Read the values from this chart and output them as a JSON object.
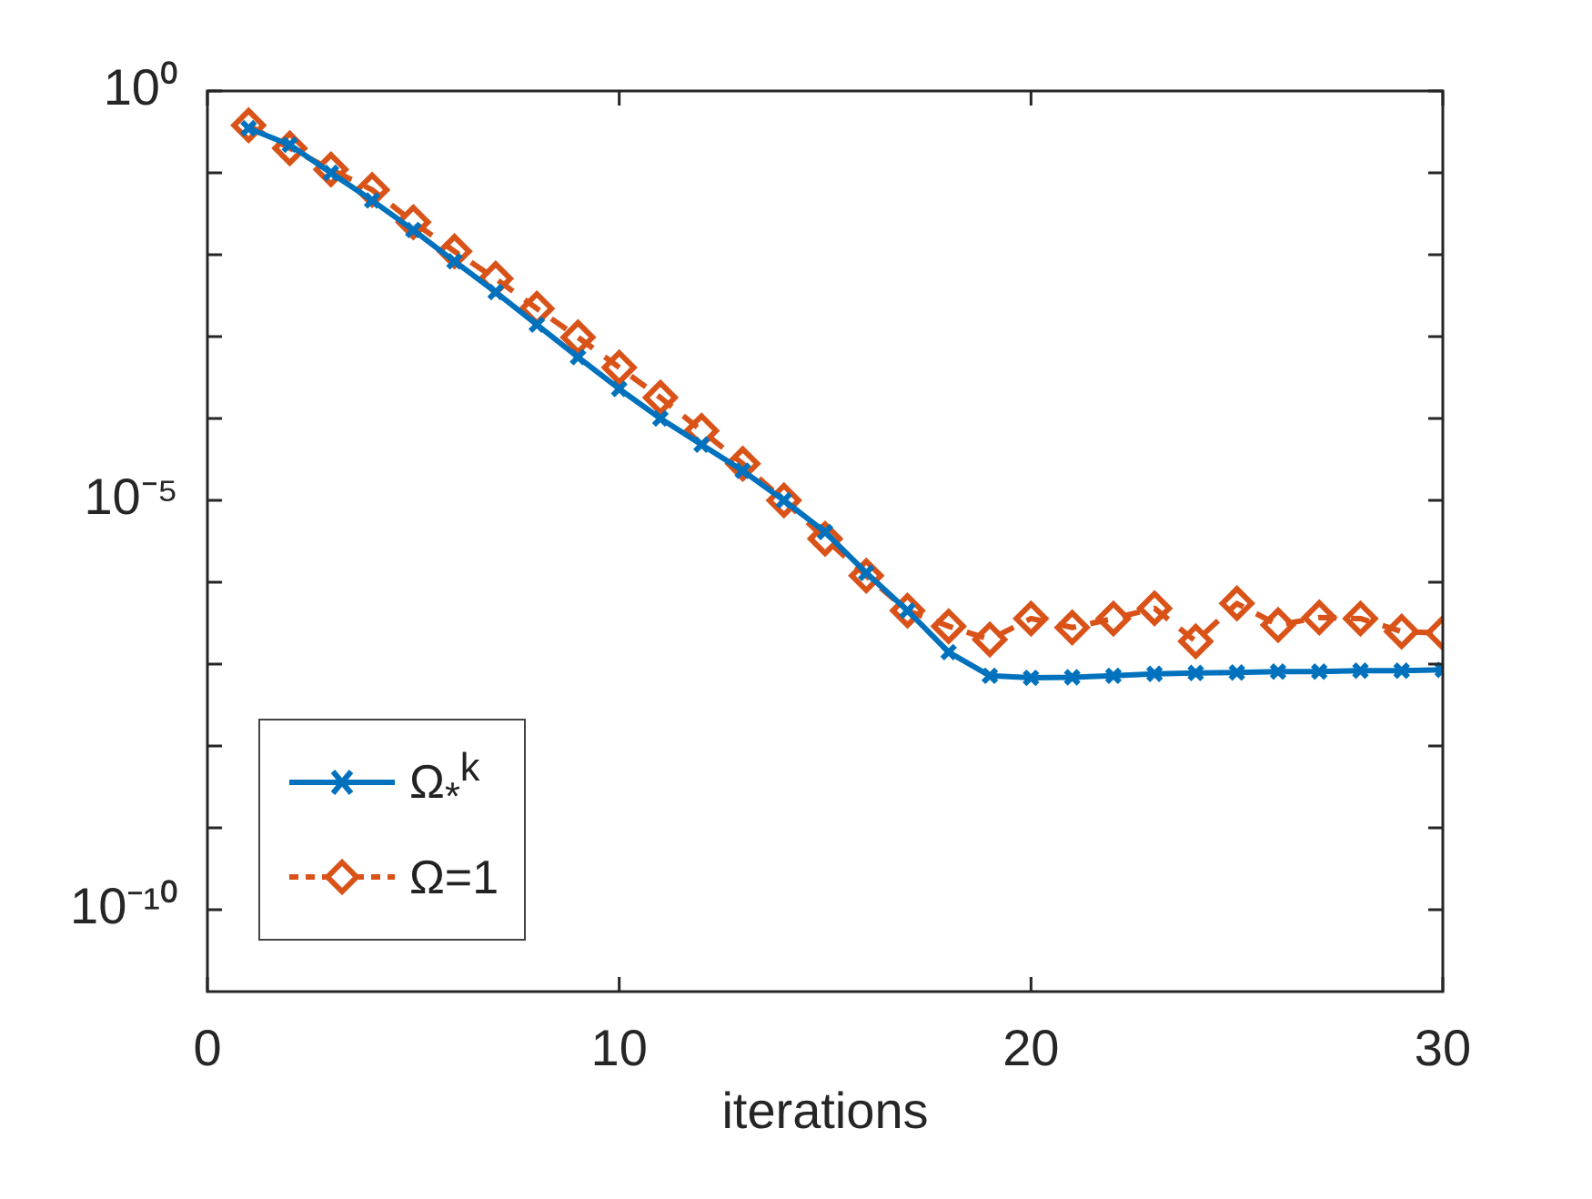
{
  "chart_data": {
    "type": "line",
    "xlabel": "iterations",
    "x": [
      1,
      2,
      3,
      4,
      5,
      6,
      7,
      8,
      9,
      10,
      11,
      12,
      13,
      14,
      15,
      16,
      17,
      18,
      19,
      20,
      21,
      22,
      23,
      24,
      25,
      26,
      27,
      28,
      29,
      30
    ],
    "series": [
      {
        "name": "Ω$_{*}$$^{k}$",
        "color": "#0072bd",
        "marker": "cross",
        "line_style": "solid",
        "values": [
          0.35,
          0.22,
          0.1,
          0.046,
          0.02,
          0.0083,
          0.0035,
          0.0014,
          0.00056,
          0.00023,
          0.0001,
          4.8e-05,
          2.3e-05,
          1e-05,
          4.1e-06,
          1.3e-06,
          4.5e-07,
          1.4e-07,
          7.2e-08,
          6.8e-08,
          6.9e-08,
          7.2e-08,
          7.6e-08,
          7.8e-08,
          7.9e-08,
          8.1e-08,
          8.1e-08,
          8.3e-08,
          8.3e-08,
          8.5e-08
        ]
      },
      {
        "name": "Ω=1",
        "color": "#d95319",
        "marker": "diamond",
        "line_style": "dashed",
        "values": [
          0.38,
          0.2,
          0.11,
          0.062,
          0.025,
          0.011,
          0.0051,
          0.0022,
          0.00098,
          0.00042,
          0.00018,
          7.1e-05,
          2.8e-05,
          1e-05,
          3.4e-06,
          1.2e-06,
          4.5e-07,
          2.9e-07,
          2e-07,
          3.6e-07,
          2.8e-07,
          3.6e-07,
          4.8e-07,
          1.9e-07,
          5.5e-07,
          3e-07,
          3.7e-07,
          3.6e-07,
          2.5e-07,
          2.4e-07
        ]
      }
    ],
    "log": "y",
    "xlim": [
      0,
      30
    ],
    "xticks": [
      0,
      10,
      20,
      30
    ],
    "ylim": [
      1e-11,
      1
    ],
    "yticks": [
      {
        "value": 1e-10,
        "label": "10⁻¹⁰"
      },
      {
        "value": 1e-09,
        "label": null
      },
      {
        "value": 1e-08,
        "label": null
      },
      {
        "value": 1e-07,
        "label": null
      },
      {
        "value": 1e-06,
        "label": null
      },
      {
        "value": 1e-05,
        "label": "10⁻⁵"
      },
      {
        "value": 0.0001,
        "label": null
      },
      {
        "value": 0.001,
        "label": null
      },
      {
        "value": 0.01,
        "label": null
      },
      {
        "value": 0.1,
        "label": null
      },
      {
        "value": 1,
        "label": "10⁰"
      }
    ],
    "grid": false,
    "legend": "bottom left"
  }
}
